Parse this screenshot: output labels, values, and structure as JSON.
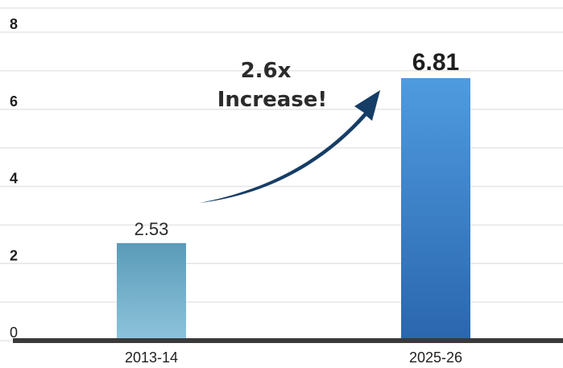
{
  "chart_data": {
    "type": "bar",
    "categories": [
      "2013-14",
      "2025-26"
    ],
    "values": [
      2.53,
      6.81
    ],
    "value_labels": [
      "2.53",
      "6.81"
    ],
    "title": "",
    "xlabel": "",
    "ylabel": "",
    "ylim": [
      0,
      8
    ],
    "yticks": [
      "0",
      "2",
      "4",
      "6",
      "8"
    ],
    "grid": true,
    "annotation": {
      "lines": [
        "2.6x",
        "Increase!"
      ],
      "arrow": "curved, pointing from first bar up to second bar"
    },
    "colors": {
      "bar_1_top": "#5a9bb8",
      "bar_1_bottom": "#8ec3dc",
      "bar_2_top": "#4f9be0",
      "bar_2_bottom": "#2a66ad",
      "arrow": "#163d66",
      "baseline": "#3a3a3a",
      "grid": "#e6e6e6"
    }
  }
}
